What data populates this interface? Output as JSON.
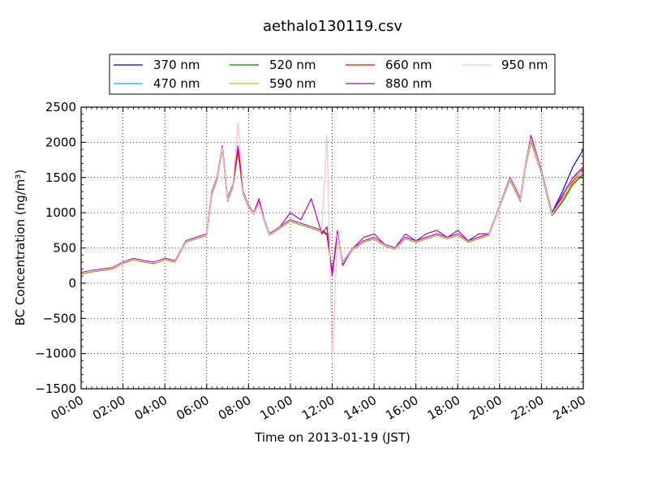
{
  "chart_data": {
    "type": "line",
    "title": "aethalo130119.csv",
    "xlabel": "Time on 2013-01-19 (JST)",
    "ylabel": "BC Concentration (ng/m³)",
    "xlim": [
      0,
      24
    ],
    "ylim": [
      -1500,
      2500
    ],
    "x_ticks": [
      "00:00",
      "02:00",
      "04:00",
      "06:00",
      "08:00",
      "10:00",
      "12:00",
      "14:00",
      "16:00",
      "18:00",
      "20:00",
      "22:00",
      "24:00"
    ],
    "y_ticks": [
      "−1500",
      "−1000",
      "−500",
      "0",
      "500",
      "1000",
      "1500",
      "2000",
      "2500"
    ],
    "grid": true,
    "legend_position": "top",
    "x_hours": [
      0,
      0.5,
      1,
      1.5,
      2,
      2.5,
      3,
      3.5,
      4,
      4.5,
      5,
      5.5,
      6,
      6.25,
      6.5,
      6.75,
      7,
      7.25,
      7.5,
      7.75,
      8,
      8.25,
      8.5,
      8.75,
      9,
      9.5,
      10,
      10.5,
      11,
      11.5,
      11.75,
      12,
      12.25,
      12.5,
      13,
      13.5,
      14,
      14.5,
      15,
      15.5,
      16,
      16.5,
      17,
      17.5,
      18,
      18.5,
      19,
      19.5,
      20,
      20.5,
      21,
      21.25,
      21.5,
      22,
      22.5,
      23,
      23.5,
      24
    ],
    "series": [
      {
        "name": "370 nm",
        "color": "#0000ff",
        "values": [
          150,
          180,
          200,
          220,
          300,
          350,
          320,
          300,
          350,
          320,
          600,
          650,
          700,
          1300,
          1500,
          1950,
          1200,
          1400,
          1900,
          1300,
          1100,
          1000,
          1150,
          900,
          700,
          800,
          900,
          850,
          800,
          750,
          700,
          150,
          700,
          300,
          500,
          600,
          650,
          550,
          500,
          650,
          600,
          650,
          700,
          650,
          700,
          600,
          650,
          700,
          1100,
          1500,
          1200,
          1700,
          2050,
          1600,
          1000,
          1300,
          1650,
          1900
        ]
      },
      {
        "name": "470 nm",
        "color": "#00bfbf",
        "values": [
          140,
          170,
          190,
          210,
          290,
          340,
          310,
          290,
          340,
          310,
          590,
          640,
          690,
          1280,
          1480,
          1930,
          1180,
          1380,
          1880,
          1280,
          1090,
          990,
          1140,
          890,
          690,
          790,
          890,
          840,
          790,
          740,
          690,
          140,
          690,
          290,
          490,
          590,
          640,
          540,
          490,
          640,
          590,
          640,
          690,
          640,
          690,
          590,
          640,
          690,
          1090,
          1480,
          1180,
          1680,
          2030,
          1580,
          980,
          1200,
          1500,
          1600
        ]
      },
      {
        "name": "520 nm",
        "color": "#008000",
        "values": [
          130,
          160,
          180,
          200,
          280,
          330,
          300,
          280,
          330,
          300,
          580,
          630,
          680,
          1260,
          1460,
          1910,
          1160,
          1360,
          1860,
          1260,
          1080,
          980,
          1130,
          880,
          680,
          780,
          880,
          830,
          780,
          730,
          680,
          130,
          680,
          280,
          480,
          580,
          630,
          530,
          480,
          630,
          580,
          630,
          680,
          630,
          680,
          580,
          630,
          680,
          1080,
          1460,
          1160,
          1660,
          2010,
          1560,
          960,
          1150,
          1400,
          1550
        ]
      },
      {
        "name": "590 nm",
        "color": "#bfbf00",
        "values": [
          135,
          165,
          185,
          205,
          285,
          335,
          305,
          285,
          335,
          305,
          585,
          635,
          685,
          1270,
          1470,
          1920,
          1170,
          1370,
          1870,
          1270,
          1085,
          985,
          1135,
          885,
          685,
          785,
          885,
          835,
          785,
          735,
          685,
          135,
          685,
          285,
          485,
          585,
          635,
          535,
          485,
          635,
          585,
          635,
          685,
          635,
          685,
          585,
          635,
          685,
          1085,
          1470,
          1170,
          1670,
          2020,
          1570,
          970,
          1180,
          1420,
          1580
        ]
      },
      {
        "name": "660 nm",
        "color": "#ff0000",
        "values": [
          145,
          175,
          195,
          215,
          295,
          345,
          315,
          295,
          345,
          315,
          595,
          645,
          695,
          1290,
          1490,
          1940,
          1190,
          1390,
          1890,
          1290,
          1095,
          995,
          1145,
          895,
          695,
          795,
          895,
          845,
          795,
          745,
          695,
          145,
          695,
          295,
          495,
          595,
          645,
          545,
          495,
          645,
          595,
          645,
          695,
          645,
          695,
          595,
          645,
          695,
          1095,
          1490,
          1190,
          1690,
          2040,
          1590,
          990,
          1220,
          1450,
          1620
        ]
      },
      {
        "name": "880 nm",
        "color": "#bf00bf",
        "values": [
          150,
          180,
          200,
          220,
          300,
          350,
          320,
          300,
          350,
          320,
          600,
          650,
          700,
          1300,
          1500,
          1950,
          1200,
          1400,
          1950,
          1300,
          1100,
          1000,
          1200,
          900,
          700,
          800,
          1000,
          900,
          1200,
          700,
          800,
          100,
          750,
          250,
          500,
          650,
          700,
          550,
          500,
          700,
          600,
          700,
          750,
          650,
          750,
          600,
          700,
          700,
          1100,
          1500,
          1200,
          1700,
          2100,
          1600,
          1000,
          1250,
          1500,
          1650
        ]
      },
      {
        "name": "950 nm",
        "color": "#ffc0cb",
        "values": [
          140,
          170,
          190,
          210,
          290,
          340,
          310,
          290,
          340,
          310,
          590,
          640,
          690,
          1280,
          1480,
          1930,
          1180,
          1380,
          2280,
          1280,
          1090,
          990,
          1140,
          890,
          690,
          790,
          890,
          840,
          790,
          740,
          2100,
          -1100,
          690,
          290,
          490,
          590,
          640,
          540,
          490,
          640,
          590,
          640,
          690,
          640,
          690,
          590,
          640,
          690,
          1090,
          1480,
          1180,
          1680,
          2050,
          1580,
          980,
          1200,
          1480,
          1600
        ]
      }
    ]
  }
}
